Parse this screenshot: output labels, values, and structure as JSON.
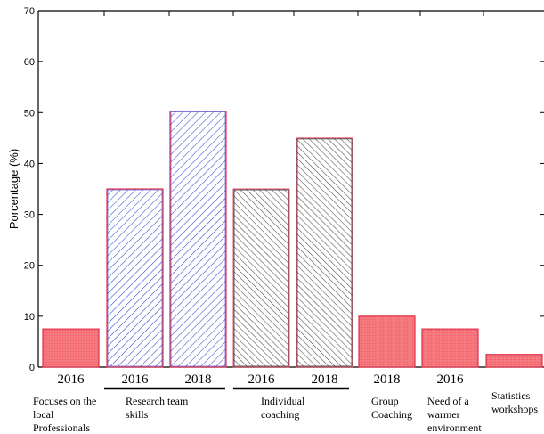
{
  "chart_data": {
    "type": "bar",
    "ylabel": "Porcentage (%)",
    "ylim": [
      0,
      70
    ],
    "yticks": [
      0,
      10,
      20,
      30,
      40,
      50,
      60,
      70
    ],
    "grid": false,
    "legend": "none",
    "groups": [
      {
        "label": [
          "Focuses on the",
          "local",
          "Professionals"
        ],
        "underline": false,
        "bars": [
          {
            "year": "2016",
            "value": 7.5,
            "fill": "solid-red"
          }
        ]
      },
      {
        "label": [
          "Research team",
          "skills"
        ],
        "underline": true,
        "bars": [
          {
            "year": "2016",
            "value": 35,
            "fill": "hatch-blue"
          },
          {
            "year": "2018",
            "value": 50.3,
            "fill": "hatch-blue"
          }
        ]
      },
      {
        "label": [
          "Individual",
          "coaching"
        ],
        "underline": true,
        "bars": [
          {
            "year": "2016",
            "value": 35,
            "fill": "hatch-gray"
          },
          {
            "year": "2018",
            "value": 45,
            "fill": "hatch-gray"
          }
        ]
      },
      {
        "label": [
          "Group",
          "Coaching"
        ],
        "underline": false,
        "bars": [
          {
            "year": "2018",
            "value": 10,
            "fill": "solid-red"
          }
        ]
      },
      {
        "label": [
          "Need of a",
          "warmer",
          "environment"
        ],
        "underline": false,
        "bars": [
          {
            "year": "2016",
            "value": 7.5,
            "fill": "solid-red"
          }
        ]
      },
      {
        "label": [
          "Statistics",
          "workshops"
        ],
        "underline": false,
        "bars": [
          {
            "year": "",
            "value": 2.5,
            "fill": "solid-red"
          }
        ]
      }
    ]
  },
  "colors": {
    "solid_red": "#f47a80",
    "red_outline": "#e2304a",
    "hatch_blue": "#3a3fd0",
    "hatch_gray": "#555555",
    "axis": "#000000"
  }
}
